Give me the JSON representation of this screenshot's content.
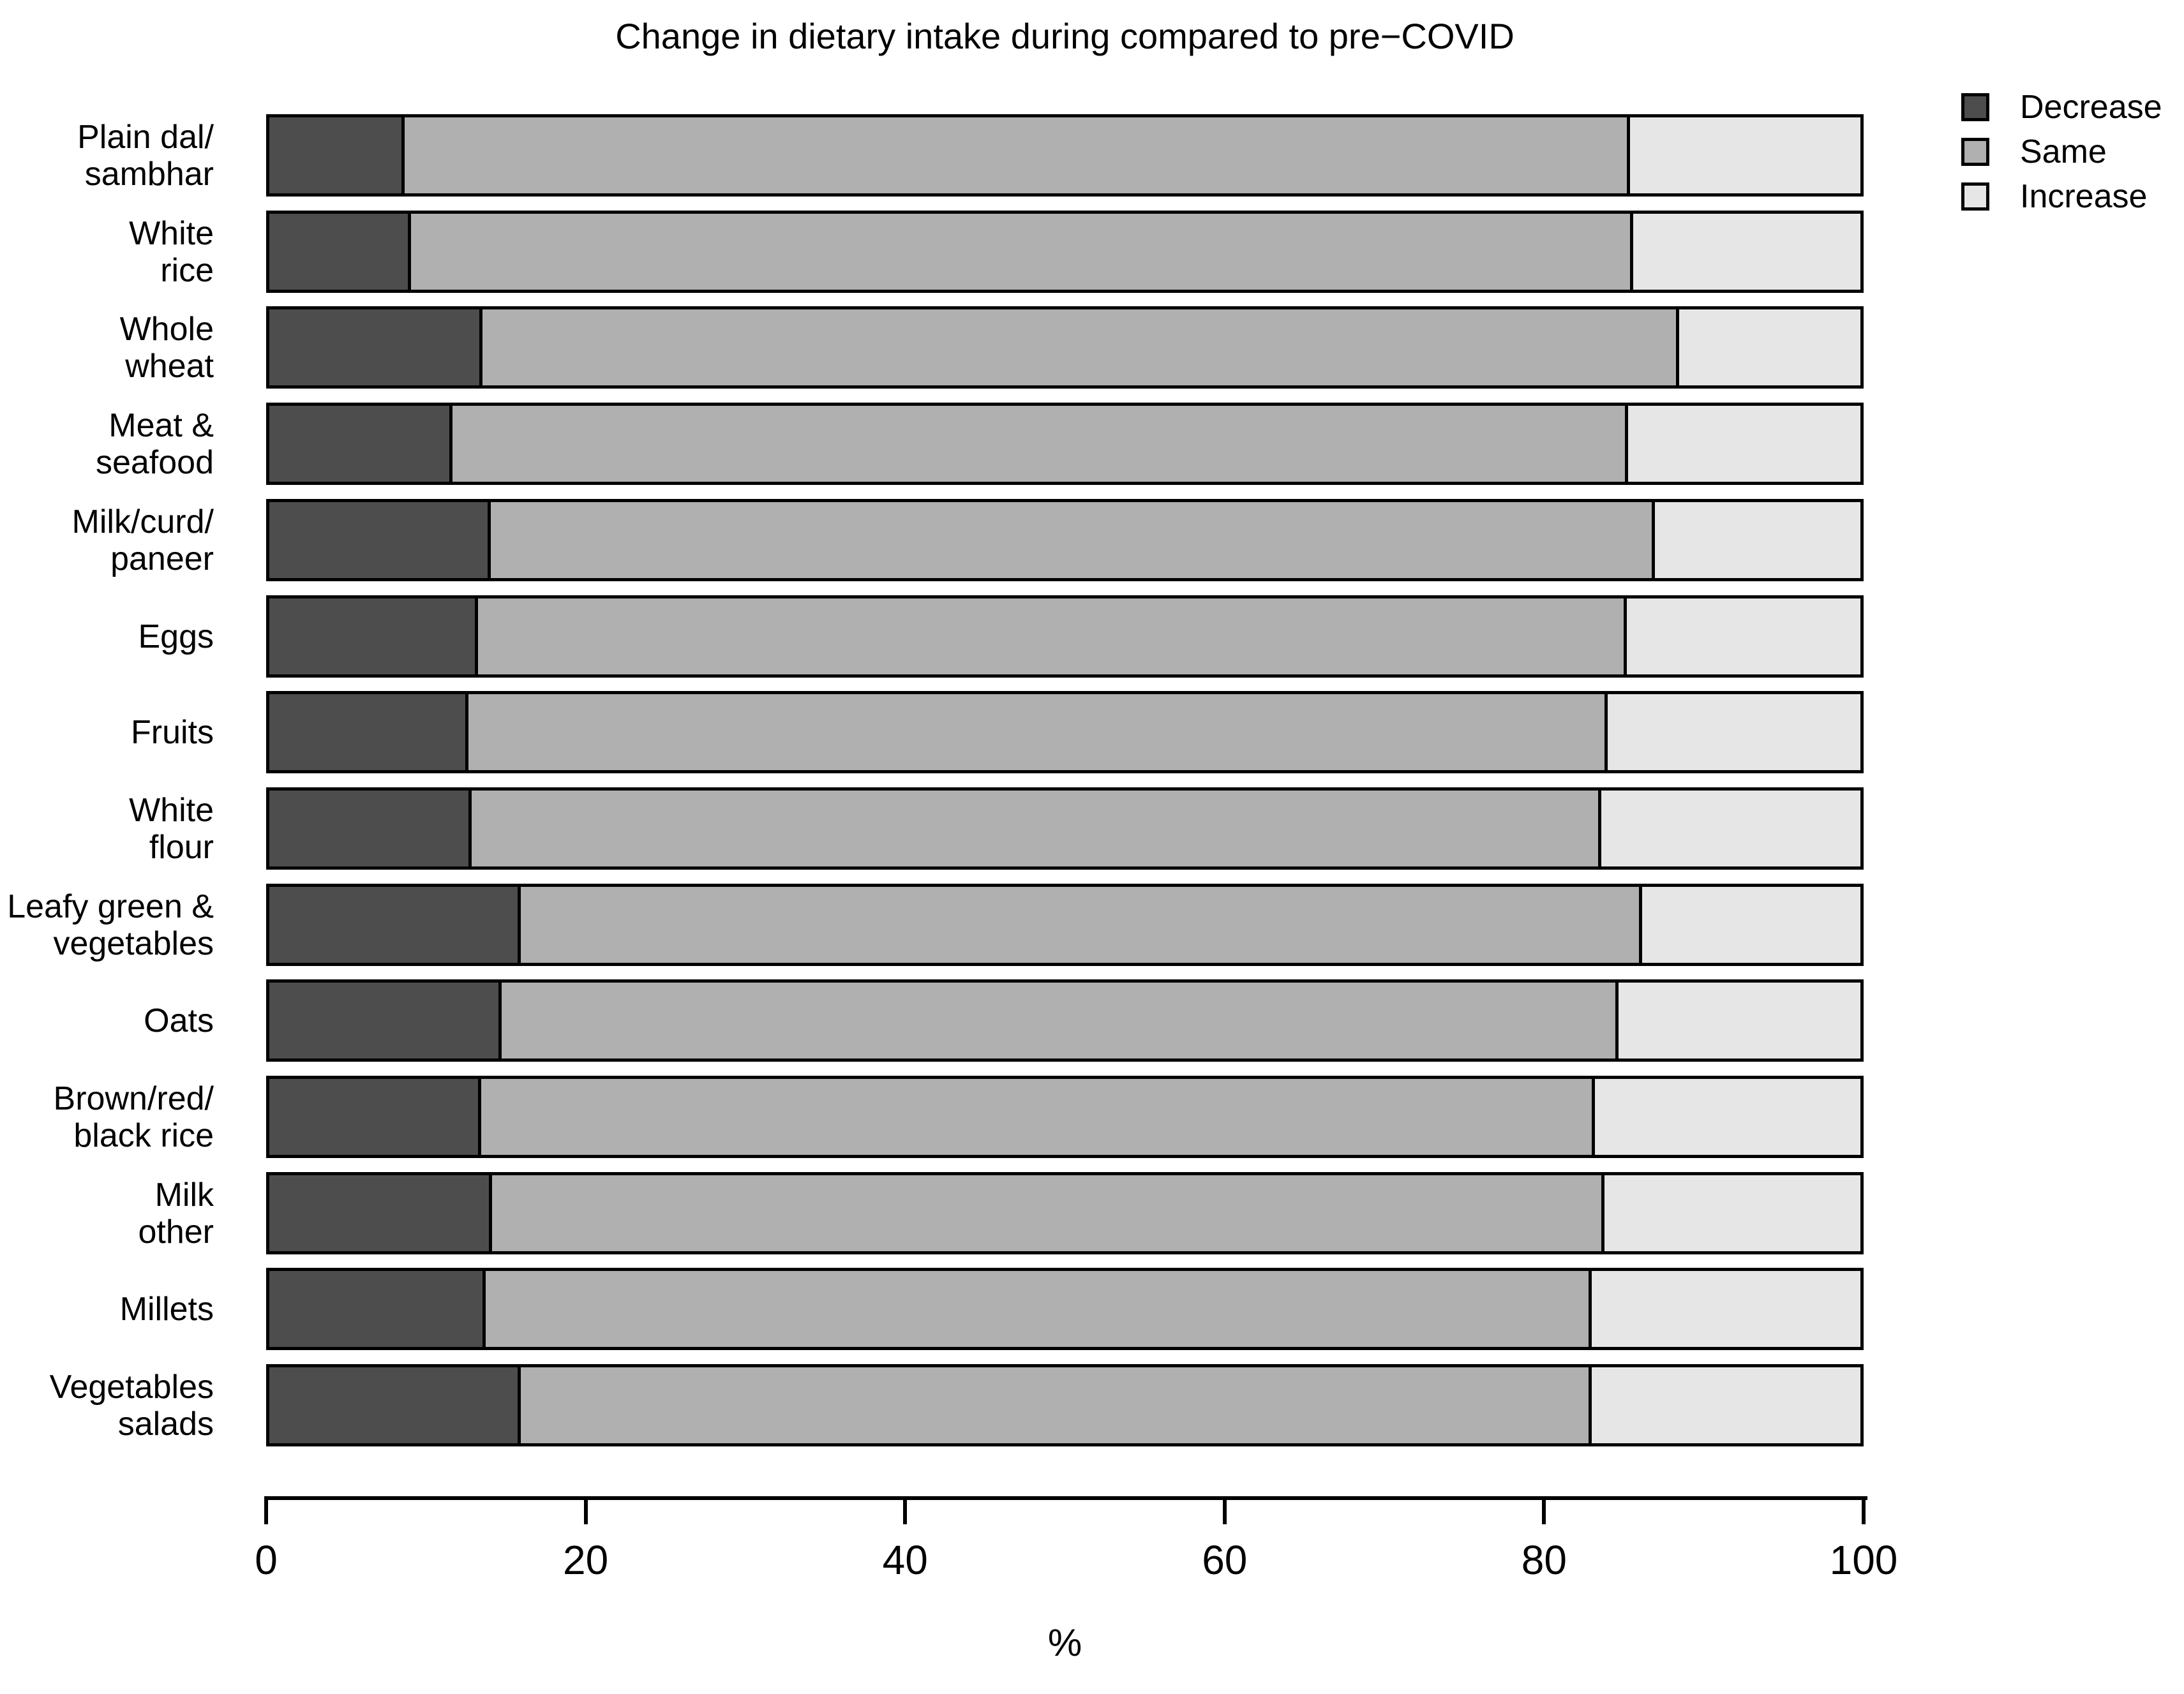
{
  "title": "Change in dietary intake during compared to pre−COVID",
  "legend": {
    "items": [
      {
        "label": "Decrease",
        "color": "#4D4D4D"
      },
      {
        "label": "Same",
        "color": "#B0B0B0"
      },
      {
        "label": "Increase",
        "color": "#E6E6E6"
      }
    ]
  },
  "axis": {
    "label": "%",
    "ticks": [
      0,
      20,
      40,
      60,
      80,
      100
    ],
    "range": [
      0,
      100
    ]
  },
  "colors": {
    "decrease": "#4D4D4D",
    "same": "#B0B0B0",
    "increase": "#E6E6E6",
    "outline": "#000000",
    "background": "#FFFFFF"
  },
  "chart_data": {
    "type": "bar",
    "orientation": "horizontal",
    "stacked": true,
    "grid": false,
    "legend_position": "top-right",
    "title": "Change in dietary intake during compared to pre−COVID",
    "xlabel": "%",
    "ylabel": "",
    "xlim": [
      0,
      100
    ],
    "categories": [
      "Plain dal/\nsambhar",
      "White\nrice",
      "Whole\nwheat",
      "Meat &\nseafood",
      "Milk/curd/\npaneer",
      "Eggs",
      "Fruits",
      "White\nflour",
      "Leafy green &\nvegetables",
      "Oats",
      "Brown/red/\nblack rice",
      "Milk\nother",
      "Millets",
      "Vegetables\nsalads"
    ],
    "categories_lines": [
      [
        "Plain dal/",
        "sambhar"
      ],
      [
        "White",
        "rice"
      ],
      [
        "Whole",
        "wheat"
      ],
      [
        "Meat &",
        "seafood"
      ],
      [
        "Milk/curd/",
        "paneer"
      ],
      [
        "Eggs"
      ],
      [
        "Fruits"
      ],
      [
        "White",
        "flour"
      ],
      [
        "Leafy green &",
        "vegetables"
      ],
      [
        "Oats"
      ],
      [
        "Brown/red/",
        "black rice"
      ],
      [
        "Milk",
        "other"
      ],
      [
        "Millets"
      ],
      [
        "Vegetables",
        "salads"
      ]
    ],
    "series": [
      {
        "name": "Decrease",
        "color": "#4D4D4D",
        "values": [
          8.3,
          8.7,
          13.2,
          11.3,
          13.7,
          12.9,
          12.3,
          12.5,
          15.6,
          14.4,
          13.1,
          13.8,
          13.4,
          15.6
        ]
      },
      {
        "name": "Same",
        "color": "#B0B0B0",
        "values": [
          77.2,
          77.0,
          75.4,
          74.1,
          73.4,
          72.4,
          71.8,
          71.2,
          70.7,
          70.4,
          70.2,
          70.1,
          69.7,
          67.5
        ]
      },
      {
        "name": "Increase",
        "color": "#E6E6E6",
        "values": [
          14.5,
          14.3,
          11.4,
          14.6,
          12.9,
          14.7,
          15.9,
          16.3,
          13.7,
          15.2,
          16.7,
          16.1,
          16.9,
          16.9
        ]
      }
    ]
  }
}
